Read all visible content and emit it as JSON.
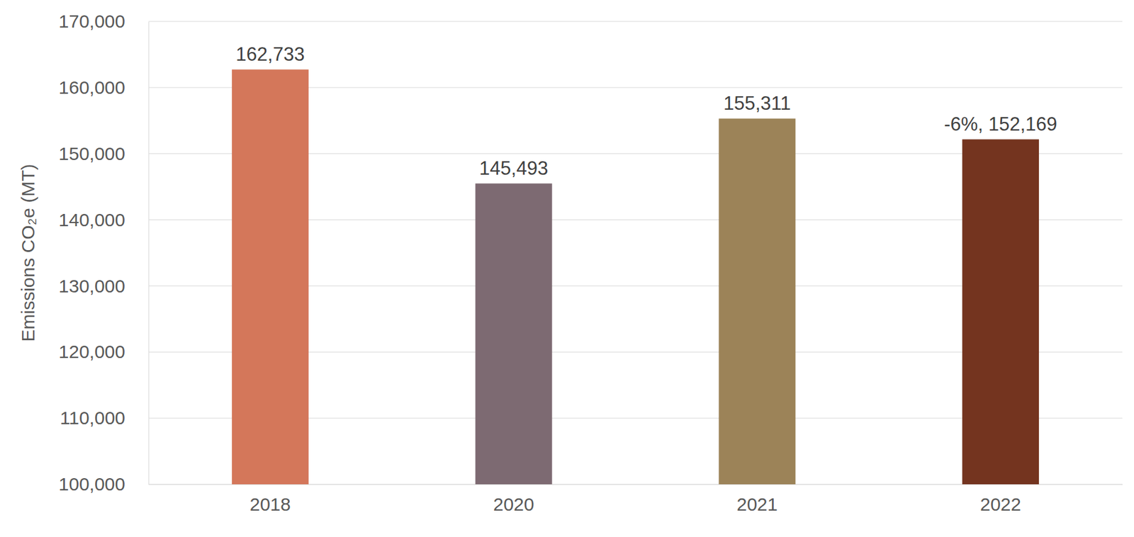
{
  "chart_data": {
    "type": "bar",
    "y_label": "Emissions CO₂e (MT)",
    "categories": [
      "2018",
      "2020",
      "2021",
      "2022"
    ],
    "values": [
      162733,
      145493,
      155311,
      152169
    ],
    "value_labels": [
      "162,733",
      "145,493",
      "155,311",
      "-6%, 152,169"
    ],
    "colors": [
      "#d4775a",
      "#7d6a72",
      "#9c8358",
      "#74341f"
    ],
    "ylim": [
      100000,
      170000
    ],
    "yticks": [
      {
        "value": 100000,
        "label": "100,000"
      },
      {
        "value": 110000,
        "label": "110,000"
      },
      {
        "value": 120000,
        "label": "120,000"
      },
      {
        "value": 130000,
        "label": "130,000"
      },
      {
        "value": 140000,
        "label": "140,000"
      },
      {
        "value": 150000,
        "label": "150,000"
      },
      {
        "value": 160000,
        "label": "160,000"
      },
      {
        "value": 170000,
        "label": "170,000"
      }
    ],
    "grid": true,
    "data_labels": true
  }
}
